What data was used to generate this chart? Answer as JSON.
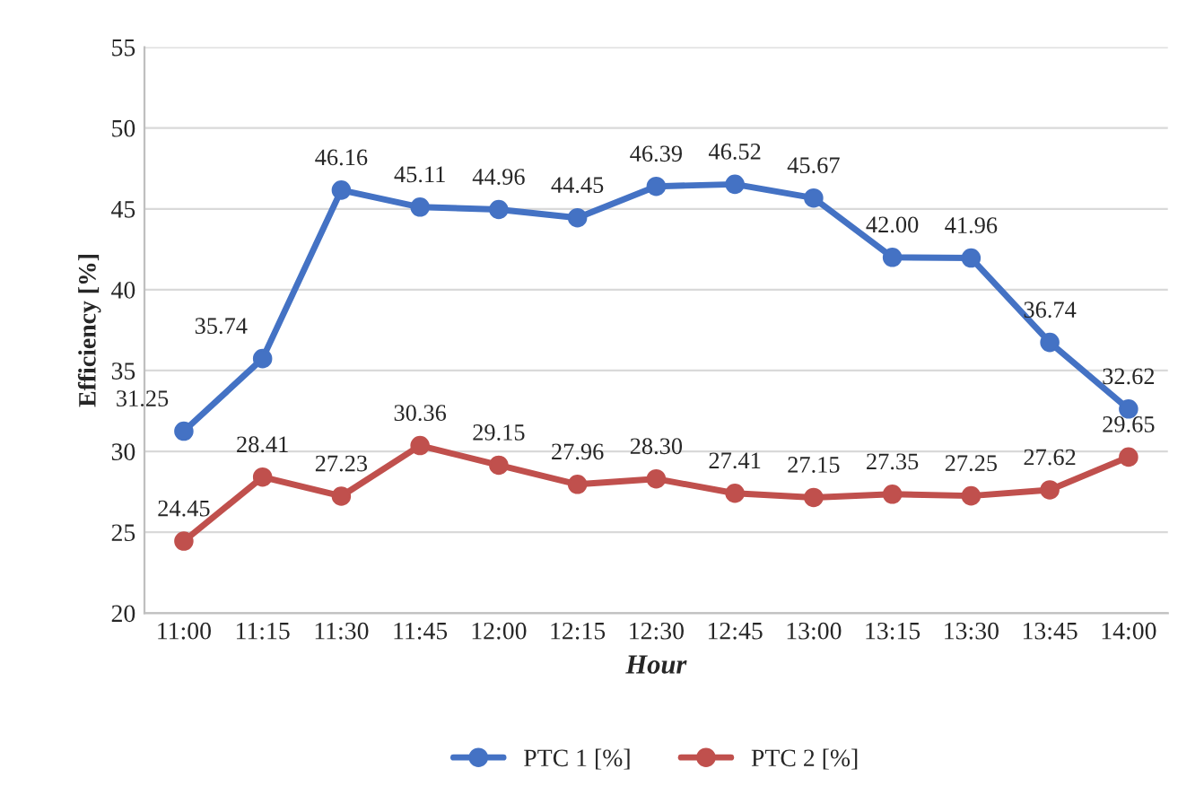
{
  "chart_data": {
    "type": "line",
    "xlabel": "Hour",
    "ylabel": "Efficiency [%]",
    "categories": [
      "11:00",
      "11:15",
      "11:30",
      "11:45",
      "12:00",
      "12:15",
      "12:30",
      "12:45",
      "13:00",
      "13:15",
      "13:30",
      "13:45",
      "14:00"
    ],
    "series": [
      {
        "name": "PTC 1 [%]",
        "color": "#4472c4",
        "values": [
          31.25,
          35.74,
          46.16,
          45.11,
          44.96,
          44.45,
          46.39,
          46.52,
          45.67,
          42.0,
          41.96,
          36.74,
          32.62
        ],
        "value_labels": [
          "31.25",
          "35.74",
          "46.16",
          "45.11",
          "44.96",
          "44.45",
          "46.39",
          "46.52",
          "45.67",
          "42.00",
          "41.96",
          "36.74",
          "32.62"
        ]
      },
      {
        "name": "PTC 2 [%]",
        "color": "#c0504d",
        "values": [
          24.45,
          28.41,
          27.23,
          30.36,
          29.15,
          27.96,
          28.3,
          27.41,
          27.15,
          27.35,
          27.25,
          27.62,
          29.65
        ],
        "value_labels": [
          "24.45",
          "28.41",
          "27.23",
          "30.36",
          "29.15",
          "27.96",
          "28.30",
          "27.41",
          "27.15",
          "27.35",
          "27.25",
          "27.62",
          "29.65"
        ]
      }
    ],
    "ylim": [
      20,
      55
    ],
    "yticks": [
      20,
      25,
      30,
      35,
      40,
      45,
      50,
      55
    ],
    "grid": "y",
    "legend": "bottom",
    "marker": "circle",
    "line_style": "solid"
  }
}
